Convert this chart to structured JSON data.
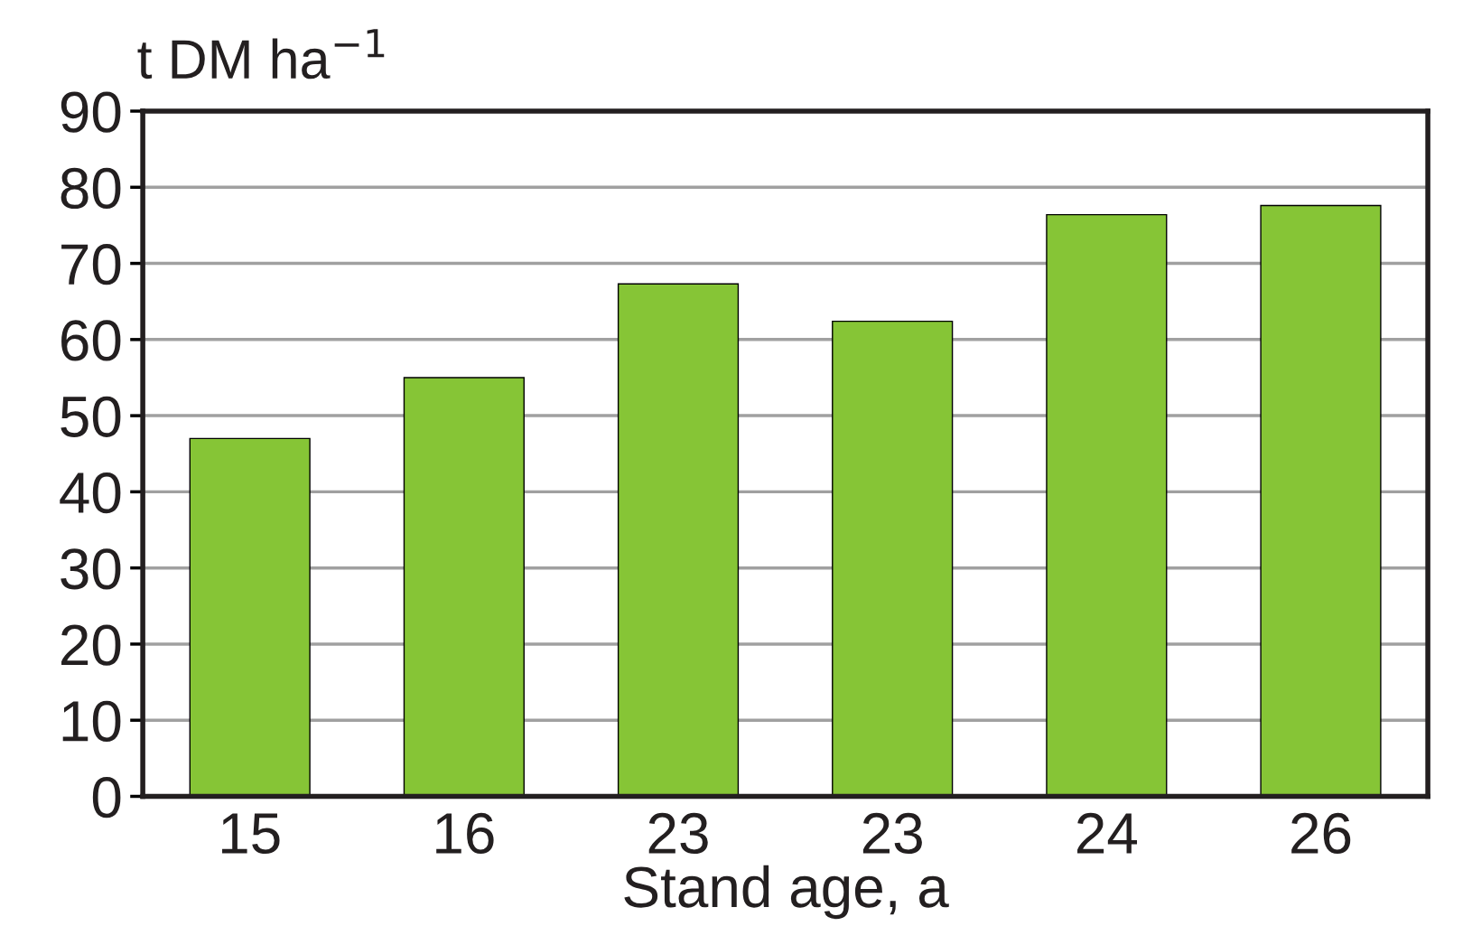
{
  "chart_data": {
    "type": "bar",
    "xlabel": "Stand age, a",
    "ylabel": "t DM ha$^{−1}$",
    "categories": [
      "15",
      "16",
      "23",
      "23",
      "24",
      "26"
    ],
    "values": [
      47,
      55,
      67.3,
      62.4,
      76.4,
      77.6
    ],
    "color": "#86c536",
    "ylim": [
      0,
      90
    ],
    "yticks": [
      0,
      10,
      20,
      30,
      40,
      50,
      60,
      70,
      80,
      90
    ],
    "grid": "y",
    "legend": false
  }
}
